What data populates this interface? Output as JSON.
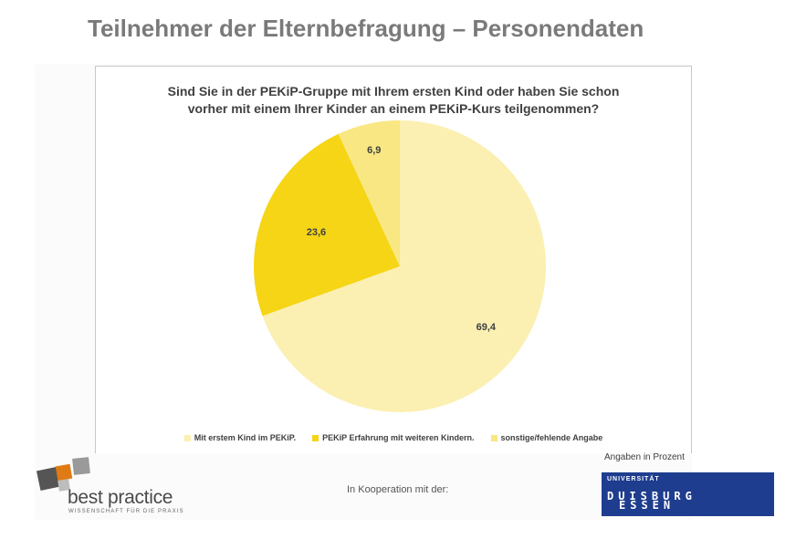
{
  "slide": {
    "title": "Teilnehmer der Elternbefragung – Personendaten",
    "note": "Angaben in Prozent",
    "cooperation": "In Kooperation mit der:"
  },
  "logos": {
    "best_practice": {
      "name": "best practice",
      "tagline": "WISSENSCHAFT FÜR DIE PRAXIS"
    },
    "university": {
      "line1": "UNIVERSITÄT",
      "line2": "DUISBURG",
      "line3": "ESSEN"
    }
  },
  "colors": {
    "title": "#7a7a7a",
    "uni_blue": "#1f3d8f"
  },
  "chart_data": {
    "type": "pie",
    "title_lines": [
      "Sind Sie in der PEKiP-Gruppe mit Ihrem ersten Kind oder haben Sie schon",
      "vorher mit einem Ihrer Kinder an einem PEKiP-Kurs teilgenommen?"
    ],
    "categories": [
      "Mit erstem Kind im PEKiP.",
      "PEKiP Erfahrung mit weiteren Kindern.",
      "sonstige/fehlende Angabe"
    ],
    "values": [
      69.4,
      23.6,
      6.9
    ],
    "labels": [
      "69,4",
      "23,6",
      "6,9"
    ],
    "colors": [
      "#fbf0b2",
      "#f5d516",
      "#f9e784"
    ],
    "start_angle_deg": 0,
    "direction": "clockwise",
    "legend_position": "bottom"
  }
}
